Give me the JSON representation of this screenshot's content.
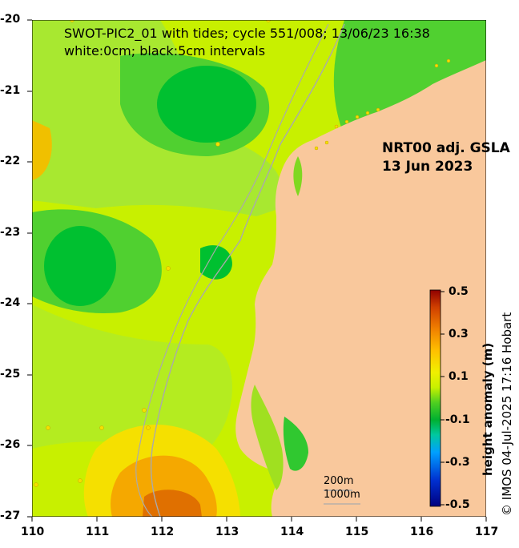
{
  "title": {
    "line1": "SWOT-PIC2_01 with tides; cycle 551/008; 13/06/23 16:38",
    "line2": "white:0cm; black:5cm intervals"
  },
  "product": {
    "line1": "NRT00 adj. GSLA",
    "line2": "13 Jun 2023"
  },
  "x_ticks": [
    "110",
    "111",
    "112",
    "113",
    "114",
    "115",
    "116",
    "117"
  ],
  "y_ticks": [
    "-20",
    "-21",
    "-22",
    "-23",
    "-24",
    "-25",
    "-26",
    "-27"
  ],
  "colorbar": {
    "label": "height anomaly (m)",
    "ticks": [
      "0.5",
      "0.3",
      "0.1",
      "-0.1",
      "-0.3",
      "-0.5"
    ],
    "vmin": -0.5,
    "vmax": 0.5
  },
  "depth_legend": {
    "shallow": "200m",
    "deep": "1000m"
  },
  "credit": "© IMOS 04-Jul-2025 17:16 Hobart",
  "colors": {
    "land": "#f9c89c",
    "ocean_base": "#c8f000",
    "negative": "#00c23a",
    "positive": "#f5a800"
  }
}
